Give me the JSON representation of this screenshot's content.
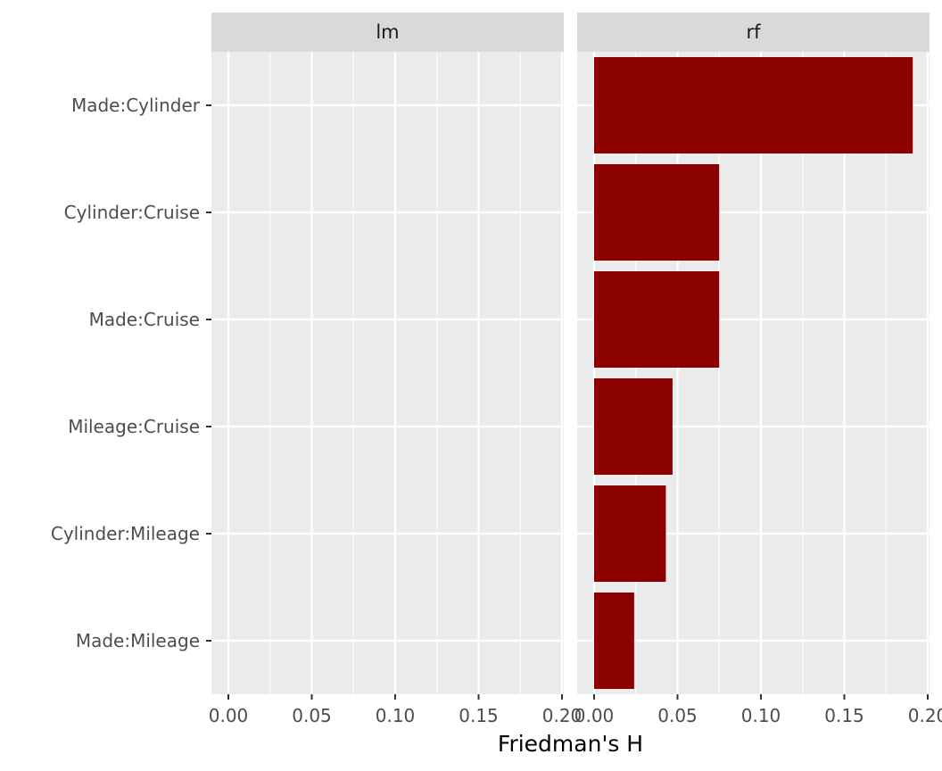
{
  "chart_data": {
    "type": "bar",
    "orientation": "horizontal",
    "facet": true,
    "xlabel": "Friedman's H",
    "ylabel": "",
    "xlim": [
      0,
      0.2
    ],
    "x_ticks": [
      0,
      0.05,
      0.1,
      0.15,
      0.2
    ],
    "x_tick_labels": [
      "0.00",
      "0.05",
      "0.10",
      "0.15",
      "0.20"
    ],
    "categories": [
      "Made:Cylinder",
      "Cylinder:Cruise",
      "Made:Cruise",
      "Mileage:Cruise",
      "Cylinder:Mileage",
      "Made:Mileage"
    ],
    "grid": true,
    "bar_color": "#8b0000",
    "panel_background": "#ebebeb",
    "strip_background": "#d9d9d9",
    "panels": [
      {
        "label": "lm",
        "values": [
          0,
          0,
          0,
          0,
          0,
          0
        ]
      },
      {
        "label": "rf",
        "values": [
          0.191,
          0.075,
          0.075,
          0.047,
          0.043,
          0.024
        ]
      }
    ]
  }
}
